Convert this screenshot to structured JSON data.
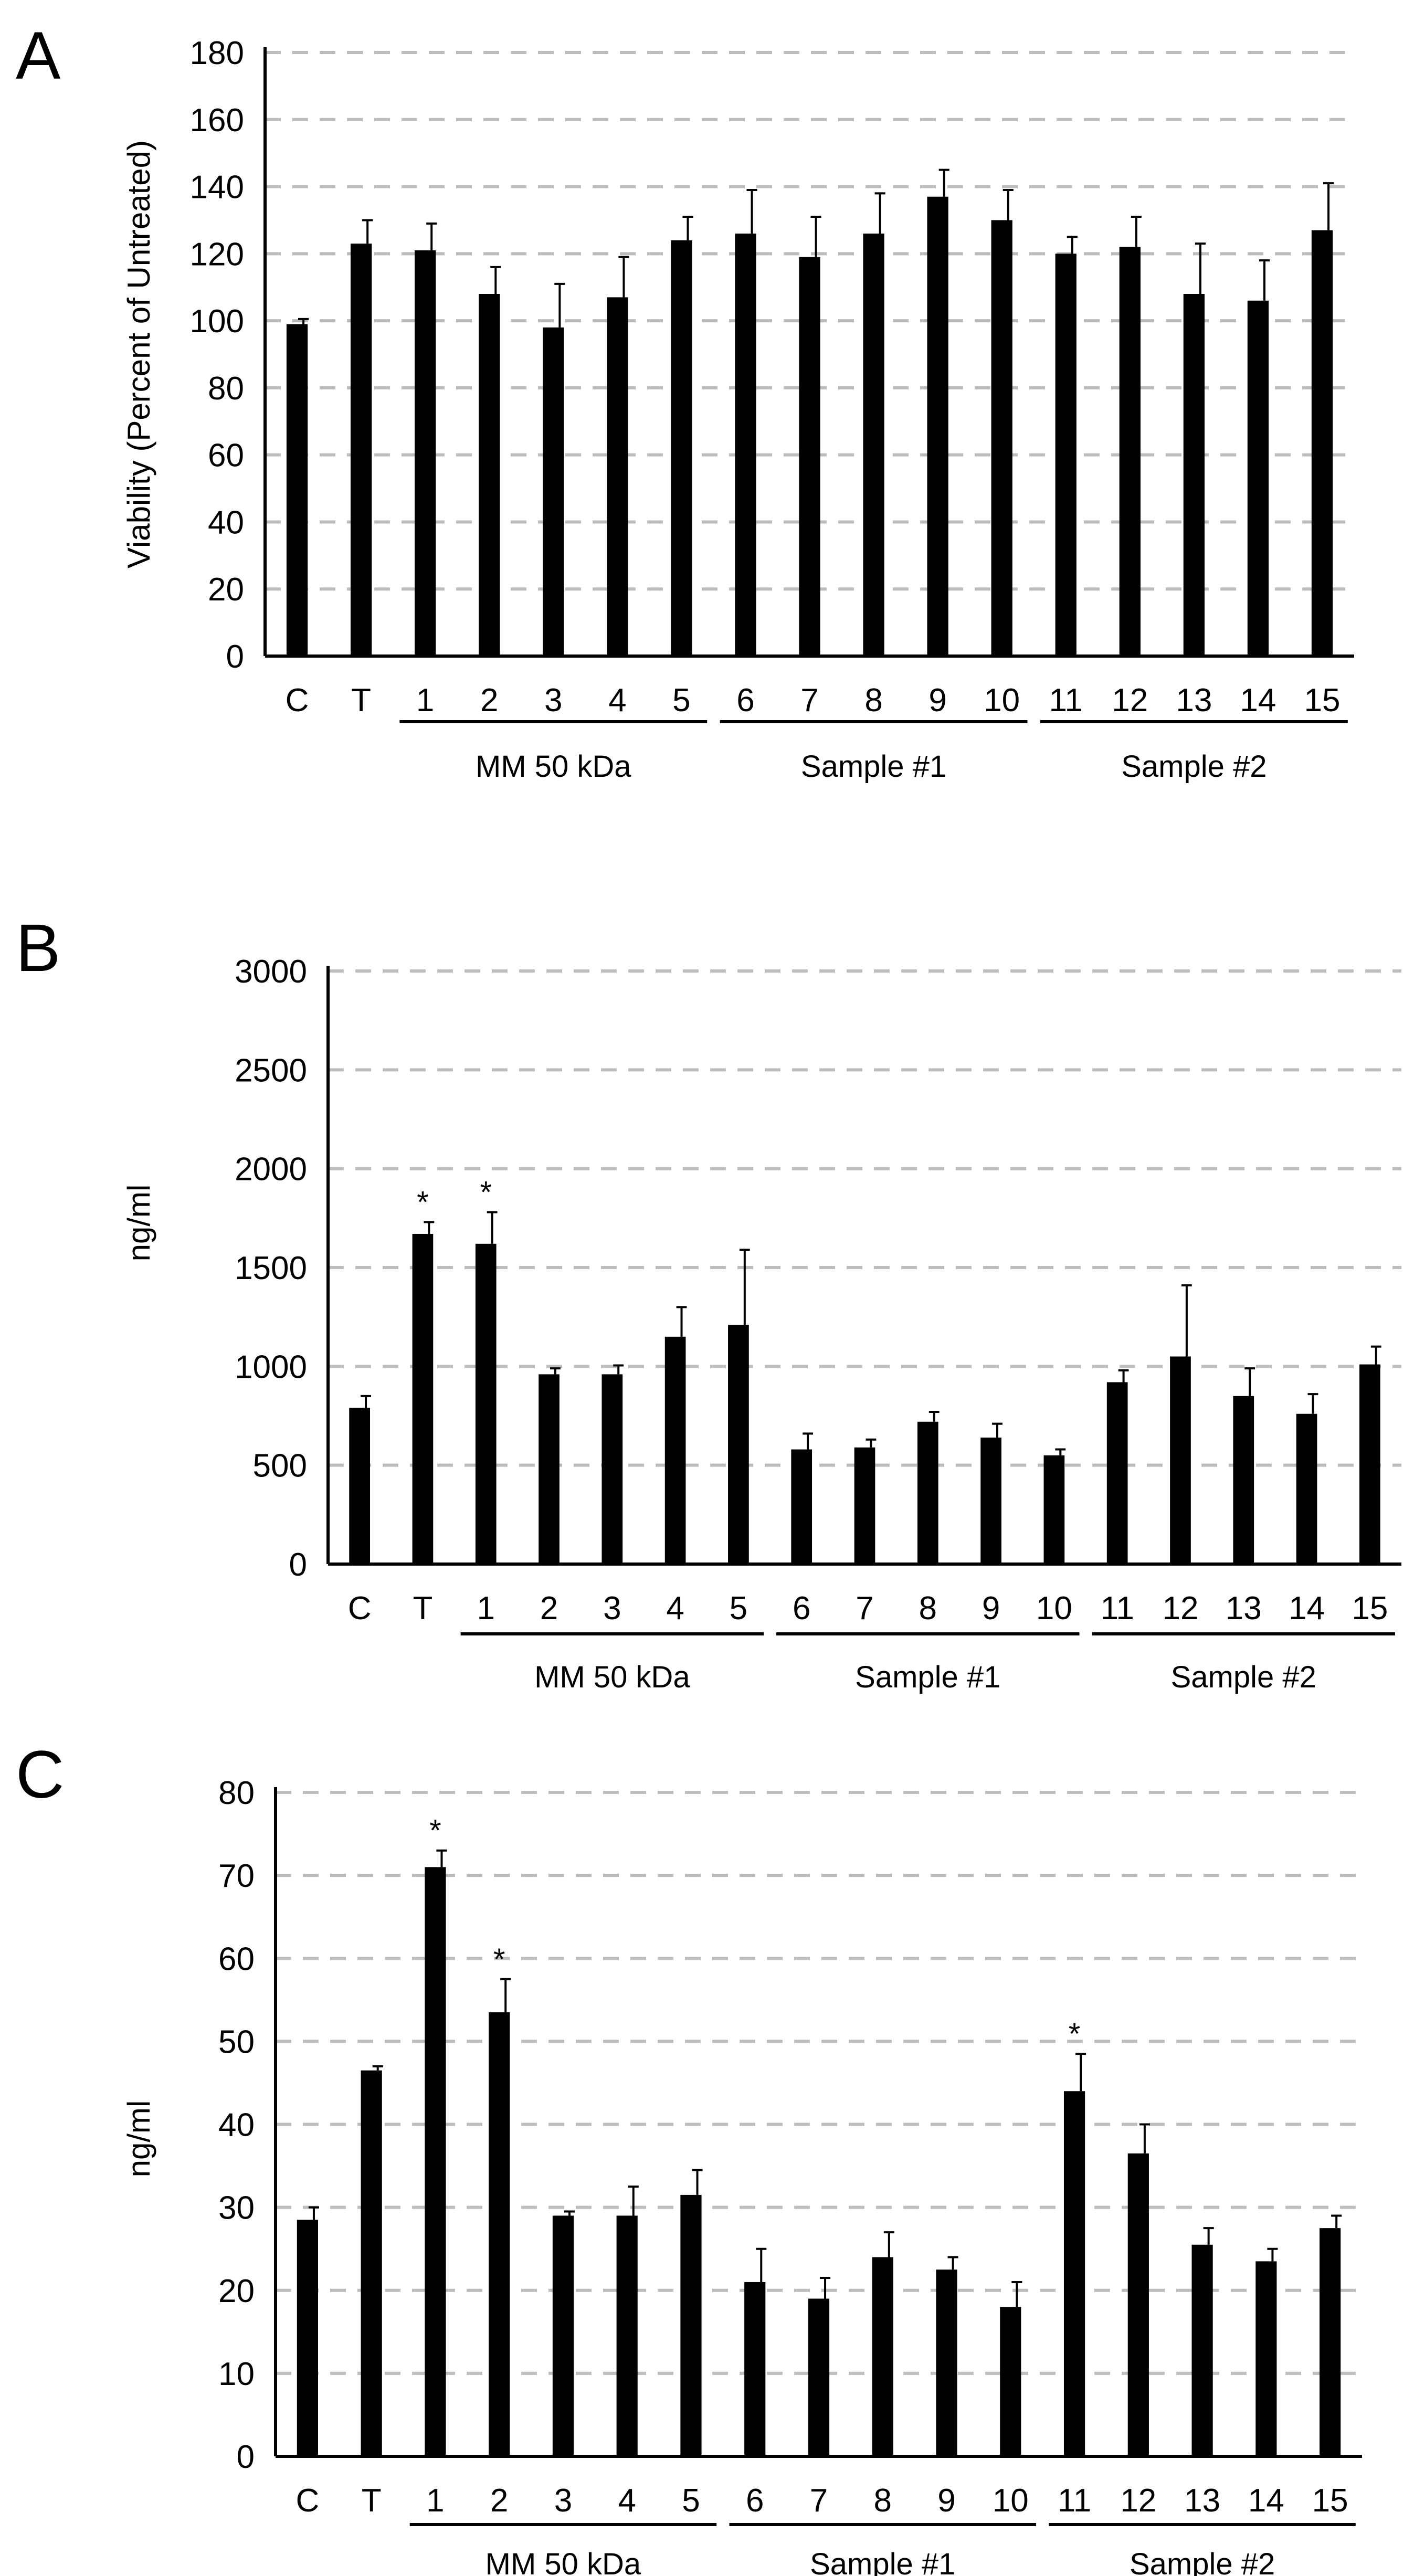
{
  "figure": {
    "panels": [
      "A",
      "B",
      "C"
    ]
  },
  "chart_data": [
    {
      "panel": "A",
      "type": "bar",
      "title": "",
      "xlabel": "",
      "ylabel": "Viability (Percent of Untreated)",
      "ylim": [
        0,
        180
      ],
      "yticks": [
        0,
        20,
        40,
        60,
        80,
        100,
        120,
        140,
        160,
        180
      ],
      "ytick_labels": [
        "0",
        "20",
        "40",
        "60",
        "80",
        "100",
        "120",
        "140",
        "160",
        "180"
      ],
      "grid": true,
      "categories": [
        "C",
        "T",
        "1",
        "2",
        "3",
        "4",
        "5",
        "6",
        "7",
        "8",
        "9",
        "10",
        "11",
        "12",
        "13",
        "14",
        "15"
      ],
      "values": [
        99,
        123,
        121,
        108,
        98,
        107,
        124,
        126,
        119,
        126,
        137,
        130,
        120,
        122,
        108,
        106,
        127
      ],
      "errors": [
        1.5,
        7,
        8,
        8,
        13,
        12,
        7,
        13,
        12,
        12,
        8,
        9,
        5,
        9,
        15,
        12,
        14
      ],
      "significant": [],
      "significance_marker": "*",
      "groups": [
        {
          "label": "MM 50 kDa",
          "start": "1",
          "end": "5"
        },
        {
          "label": "Sample #1",
          "start": "6",
          "end": "10"
        },
        {
          "label": "Sample #2",
          "start": "11",
          "end": "15"
        }
      ]
    },
    {
      "panel": "B",
      "type": "bar",
      "title": "",
      "xlabel": "",
      "ylabel": "ng/ml",
      "ylim": [
        0,
        3000
      ],
      "yticks": [
        0,
        500,
        1000,
        1500,
        2000,
        2500,
        3000
      ],
      "ytick_labels": [
        "0",
        "500",
        "1000",
        "1500",
        "2000",
        "2500",
        "3000"
      ],
      "grid": true,
      "categories": [
        "C",
        "T",
        "1",
        "2",
        "3",
        "4",
        "5",
        "6",
        "7",
        "8",
        "9",
        "10",
        "11",
        "12",
        "13",
        "14",
        "15"
      ],
      "values": [
        790,
        1670,
        1620,
        960,
        960,
        1150,
        1210,
        580,
        590,
        720,
        640,
        550,
        920,
        1050,
        850,
        760,
        1010
      ],
      "errors": [
        60,
        60,
        160,
        30,
        45,
        150,
        380,
        80,
        40,
        50,
        70,
        30,
        60,
        360,
        140,
        100,
        90
      ],
      "significant": [
        "T",
        "1"
      ],
      "significance_marker": "*",
      "groups": [
        {
          "label": "MM 50 kDa",
          "start": "1",
          "end": "5"
        },
        {
          "label": "Sample #1",
          "start": "6",
          "end": "10"
        },
        {
          "label": "Sample #2",
          "start": "11",
          "end": "15"
        }
      ]
    },
    {
      "panel": "C",
      "type": "bar",
      "title": "",
      "xlabel": "",
      "ylabel": "ng/ml",
      "ylim": [
        0,
        80
      ],
      "yticks": [
        0,
        10,
        20,
        30,
        40,
        50,
        60,
        70,
        80
      ],
      "ytick_labels": [
        "0",
        "10",
        "20",
        "30",
        "40",
        "50",
        "60",
        "70",
        "80"
      ],
      "grid": true,
      "categories": [
        "C",
        "T",
        "1",
        "2",
        "3",
        "4",
        "5",
        "6",
        "7",
        "8",
        "9",
        "10",
        "11",
        "12",
        "13",
        "14",
        "15"
      ],
      "values": [
        28.5,
        46.5,
        71,
        53.5,
        29,
        29,
        31.5,
        21,
        19,
        24,
        22.5,
        18,
        44,
        36.5,
        25.5,
        23.5,
        27.5
      ],
      "errors": [
        1.5,
        0.5,
        2,
        4,
        0.5,
        3.5,
        3,
        4,
        2.5,
        3,
        1.5,
        3,
        4.5,
        3.5,
        2,
        1.5,
        1.5
      ],
      "significant": [
        "1",
        "2",
        "11"
      ],
      "significance_marker": "*",
      "groups": [
        {
          "label": "MM 50 kDa",
          "start": "1",
          "end": "5"
        },
        {
          "label": "Sample #1",
          "start": "6",
          "end": "10"
        },
        {
          "label": "Sample #2",
          "start": "11",
          "end": "15"
        }
      ]
    }
  ]
}
